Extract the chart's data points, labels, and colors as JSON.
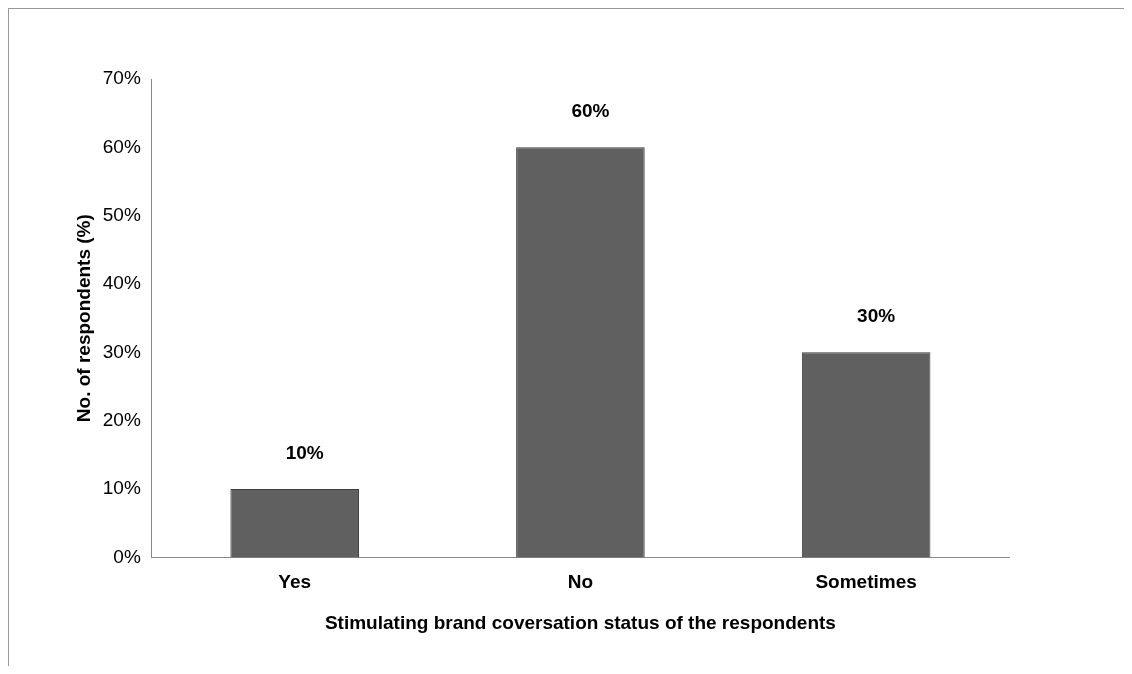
{
  "chart_data": {
    "type": "bar",
    "xlabel": "Stimulating brand coversation status of the respondents",
    "ylabel": "No. of respondents (%)",
    "categories": [
      "Yes",
      "No",
      "Sometimes"
    ],
    "values": [
      10,
      60,
      30
    ],
    "color": "#606060",
    "value_labels": [
      "10%",
      "60%",
      "30%"
    ],
    "ylim": [
      0,
      70
    ],
    "yticks": [
      {
        "value": 0,
        "label": "0%"
      },
      {
        "value": 10,
        "label": "10%"
      },
      {
        "value": 20,
        "label": "20%"
      },
      {
        "value": 30,
        "label": "30%"
      },
      {
        "value": 40,
        "label": "40%"
      },
      {
        "value": 50,
        "label": "50%"
      },
      {
        "value": 60,
        "label": "60%"
      },
      {
        "value": 70,
        "label": "70%"
      }
    ],
    "grid": false,
    "legend": false
  }
}
